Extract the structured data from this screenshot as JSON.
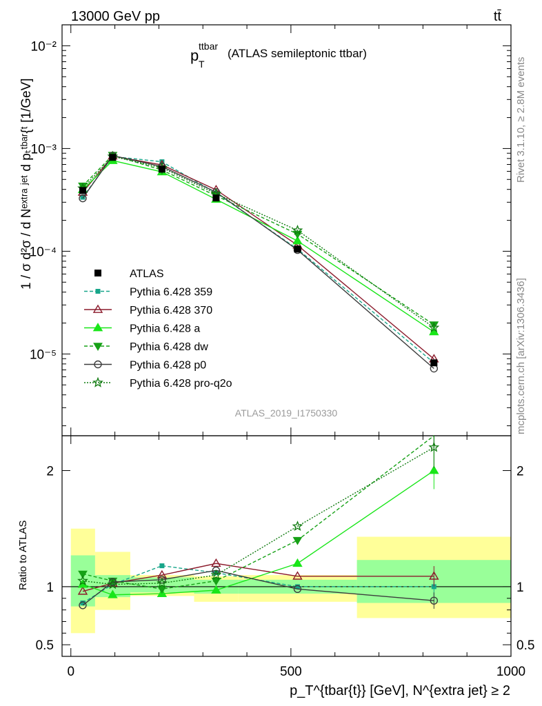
{
  "header": {
    "left_label": "13000 GeV pp",
    "right_label": "tt̄"
  },
  "side_labels": {
    "rivet": "Rivet 3.1.10, ≥ 2.8M events",
    "mcplots": "mcplots.cern.ch [arXiv:1306.3436]"
  },
  "watermark": "ATLAS_2019_I1750330",
  "chart_data": {
    "type": "line",
    "title_main": "p",
    "title_sub": "T",
    "title_sup": "ttbar",
    "title_rest": "(ATLAS semileptonic ttbar)",
    "ylabel_main": "1 / σ d²σ / d Nᵉˣᵗʳᵃ ʲᵉᵗ d pₜᵗᵇᵃʳ{ᵗ [1/GeV]",
    "ylabel_ratio": "Ratio to ATLAS",
    "xlabel": "p_T^{tbar{t}} [GeV], N^{extra jet} ≥ 2",
    "xlim": [
      -20,
      1000
    ],
    "ylim_main": [
      1.6e-06,
      0.016
    ],
    "ylim_ratio": [
      0.4,
      2.3
    ],
    "x_ticks": [
      "0",
      "500",
      "1000"
    ],
    "y_ticks_main": [
      "10⁻⁵",
      "10⁻⁴",
      "10⁻³",
      "10⁻²"
    ],
    "y_ticks_ratio": [
      "0.5",
      "1",
      "2"
    ],
    "x": [
      27,
      95,
      207,
      330,
      515,
      825
    ],
    "bin_edges": [
      0,
      55,
      135,
      280,
      380,
      650,
      1000
    ],
    "data": {
      "name": "ATLAS",
      "values": [
        0.00039,
        0.00082,
        0.00063,
        0.00033,
        0.000105,
        8.2e-06
      ],
      "band_inner": [
        [
          0.83,
          1.27
        ],
        [
          0.91,
          1.1
        ],
        [
          0.95,
          1.08
        ],
        [
          0.94,
          1.06
        ],
        [
          0.94,
          1.06
        ],
        [
          0.86,
          1.23
        ]
      ],
      "band_outer": [
        [
          0.6,
          1.5
        ],
        [
          0.8,
          1.3
        ],
        [
          0.92,
          1.1
        ],
        [
          0.87,
          1.09
        ],
        [
          0.87,
          1.1
        ],
        [
          0.73,
          1.43
        ]
      ]
    },
    "series": [
      {
        "name": "Pythia 6.428 359",
        "color": "#17a589",
        "dash": "5,3",
        "marker": "square",
        "ratio": [
          0.86,
          1.02,
          1.18,
          1.12,
          1.0,
          1.0
        ]
      },
      {
        "name": "Pythia 6.428 370",
        "color": "#8b1a2b",
        "dash": "",
        "marker": "triangle-open",
        "ratio": [
          0.96,
          1.03,
          1.1,
          1.2,
          1.09,
          1.09
        ]
      },
      {
        "name": "Pythia 6.428 a",
        "color": "#19e619",
        "dash": "",
        "marker": "triangle",
        "ratio": [
          1.02,
          0.93,
          0.94,
          0.97,
          1.2,
          2.0
        ]
      },
      {
        "name": "Pythia 6.428 dw",
        "color": "#16a116",
        "dash": "5,3",
        "marker": "triangle-down",
        "ratio": [
          1.11,
          1.05,
          0.98,
          1.05,
          1.4,
          2.35
        ]
      },
      {
        "name": "Pythia 6.428 p0",
        "color": "#3c3c3c",
        "dash": "",
        "marker": "circle-open",
        "ratio": [
          0.84,
          1.04,
          1.06,
          1.14,
          0.98,
          0.88
        ]
      },
      {
        "name": "Pythia 6.428 pro-q2o",
        "color": "#0f7a0f",
        "dash": "2,2",
        "marker": "star",
        "ratio": [
          1.05,
          1.02,
          1.03,
          1.1,
          1.52,
          2.2
        ]
      }
    ]
  }
}
